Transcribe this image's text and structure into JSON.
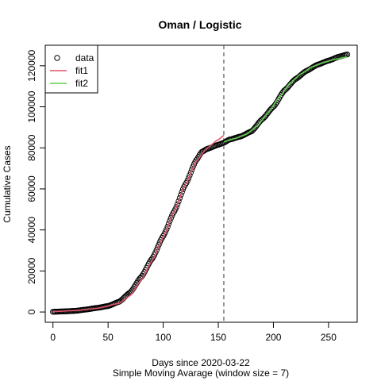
{
  "chart_data": {
    "type": "scatter",
    "title": "Oman / Logistic",
    "xlabel": "Days since 2020-03-22",
    "subtitle": "Simple Moving Avarage (window size = 7)",
    "ylabel": "Cumulative Cases",
    "xlim": [
      -7,
      276
    ],
    "ylim": [
      -5000,
      130000
    ],
    "x_ticks": [
      0,
      50,
      100,
      150,
      200,
      250
    ],
    "y_ticks": [
      0,
      20000,
      40000,
      60000,
      80000,
      100000,
      120000
    ],
    "x_tick_labels": [
      "0",
      "50",
      "100",
      "150",
      "200",
      "250"
    ],
    "y_tick_labels": [
      "0",
      "20000",
      "40000",
      "60000",
      "80000",
      "100000",
      "120000"
    ],
    "split_day": 155,
    "legend": {
      "placement": "top-left",
      "entries": [
        "data",
        "fit1",
        "fit2"
      ]
    },
    "colors": {
      "data": "#000000",
      "fit1": "#DF536B",
      "fit2": "#61D04F",
      "vline": "#555555"
    },
    "series": [
      {
        "name": "data",
        "kind": "points",
        "anchors": [
          [
            0,
            100
          ],
          [
            10,
            300
          ],
          [
            20,
            550
          ],
          [
            30,
            1200
          ],
          [
            40,
            2000
          ],
          [
            50,
            2900
          ],
          [
            60,
            5000
          ],
          [
            70,
            9500
          ],
          [
            80,
            17000
          ],
          [
            90,
            26000
          ],
          [
            100,
            37000
          ],
          [
            110,
            49000
          ],
          [
            120,
            62000
          ],
          [
            130,
            74000
          ],
          [
            135,
            78000
          ],
          [
            140,
            79500
          ],
          [
            150,
            81500
          ],
          [
            155,
            82500
          ],
          [
            160,
            84000
          ],
          [
            170,
            85500
          ],
          [
            180,
            88000
          ],
          [
            190,
            94000
          ],
          [
            200,
            100000
          ],
          [
            210,
            108000
          ],
          [
            220,
            113500
          ],
          [
            230,
            117500
          ],
          [
            240,
            120500
          ],
          [
            250,
            122500
          ],
          [
            260,
            124500
          ],
          [
            267,
            125500
          ]
        ]
      },
      {
        "name": "fit1",
        "kind": "line",
        "anchors": [
          [
            0,
            200
          ],
          [
            20,
            700
          ],
          [
            40,
            1800
          ],
          [
            60,
            4200
          ],
          [
            70,
            8000
          ],
          [
            80,
            15500
          ],
          [
            90,
            25000
          ],
          [
            100,
            36500
          ],
          [
            110,
            49000
          ],
          [
            120,
            62000
          ],
          [
            130,
            73500
          ],
          [
            140,
            80000
          ],
          [
            150,
            84000
          ],
          [
            155,
            86000
          ]
        ]
      },
      {
        "name": "fit2",
        "kind": "line",
        "anchors": [
          [
            155,
            83000
          ],
          [
            165,
            84500
          ],
          [
            175,
            86500
          ],
          [
            185,
            90500
          ],
          [
            195,
            97000
          ],
          [
            205,
            104500
          ],
          [
            215,
            111500
          ],
          [
            225,
            116000
          ],
          [
            235,
            119500
          ],
          [
            245,
            121500
          ],
          [
            255,
            123000
          ],
          [
            267,
            124300
          ]
        ]
      }
    ]
  }
}
